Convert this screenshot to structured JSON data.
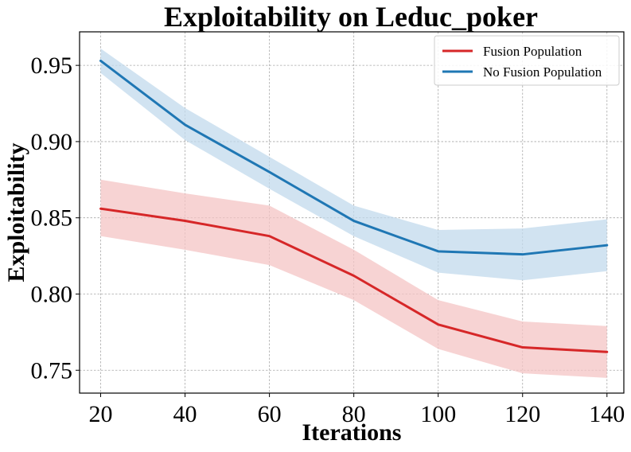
{
  "chart_data": {
    "type": "line",
    "title": "Exploitability on Leduc_poker",
    "xlabel": "Iterations",
    "ylabel": "Exploitability",
    "x": [
      20,
      40,
      60,
      80,
      100,
      120,
      140
    ],
    "xticks": [
      "20",
      "40",
      "60",
      "80",
      "100",
      "120",
      "140"
    ],
    "yticks": [
      "0.75",
      "0.80",
      "0.85",
      "0.90",
      "0.95"
    ],
    "ytick_values": [
      0.75,
      0.8,
      0.85,
      0.9,
      0.95
    ],
    "xlim": [
      15,
      144
    ],
    "ylim": [
      0.735,
      0.972
    ],
    "grid": true,
    "legend_position": "top-right",
    "series": [
      {
        "name": "Fusion Population",
        "color": "#d62728",
        "band_color": "#f4c4c4",
        "values": [
          0.856,
          0.848,
          0.838,
          0.812,
          0.78,
          0.765,
          0.762
        ],
        "upper": [
          0.875,
          0.866,
          0.858,
          0.829,
          0.796,
          0.782,
          0.779
        ],
        "lower": [
          0.838,
          0.829,
          0.819,
          0.796,
          0.764,
          0.748,
          0.745
        ]
      },
      {
        "name": "No Fusion Population",
        "color": "#1f77b4",
        "band_color": "#c1d9ec",
        "values": [
          0.953,
          0.911,
          0.88,
          0.848,
          0.828,
          0.826,
          0.832
        ],
        "upper": [
          0.961,
          0.922,
          0.89,
          0.858,
          0.842,
          0.843,
          0.849
        ],
        "lower": [
          0.945,
          0.901,
          0.869,
          0.838,
          0.814,
          0.809,
          0.815
        ]
      }
    ]
  }
}
